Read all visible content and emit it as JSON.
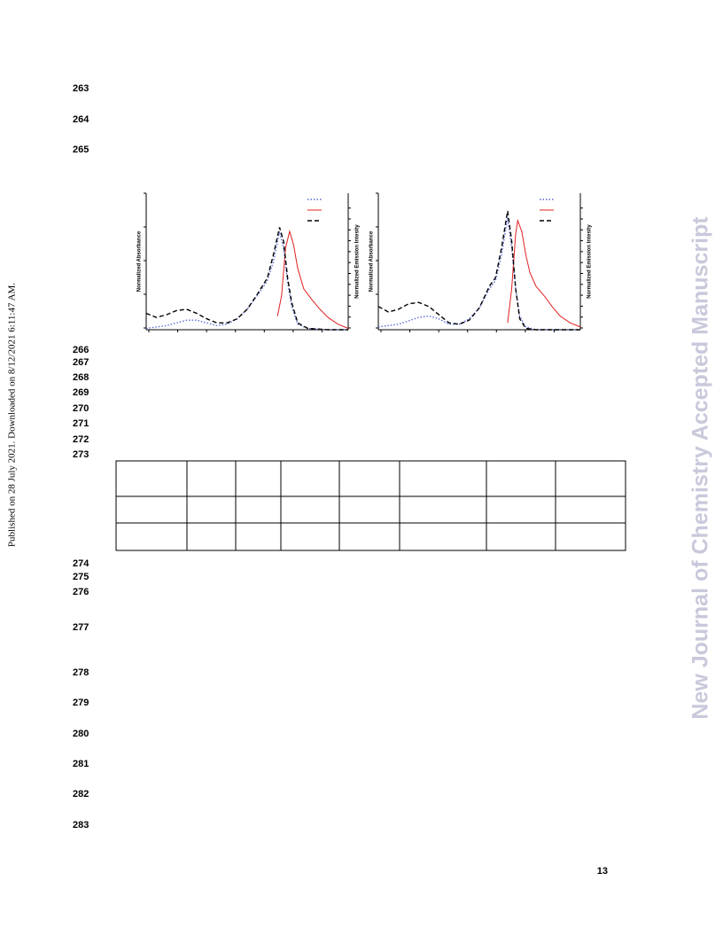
{
  "sidebar": {
    "left": "Published on 28 July 2021. Downloaded on 8/12/2021 6:11:47 AM.",
    "right": "New Journal of Chemistry Accepted Manuscript"
  },
  "line_numbers": [
    "263",
    "264",
    "265",
    "266",
    "267",
    "268",
    "269",
    "270",
    "271",
    "272",
    "273",
    "274",
    "275",
    "276",
    "277",
    "278",
    "279",
    "280",
    "281",
    "282",
    "283"
  ],
  "chart_data": [
    {
      "type": "line",
      "y_label": "Normalized Absorbance",
      "y2_label": "Normalized Emission Intesity",
      "xlim": [
        0,
        100
      ],
      "ylim": [
        0,
        1
      ],
      "series": [
        {
          "color": "#5b6bd6",
          "style": "dotted",
          "x": [
            0,
            10,
            20,
            25,
            30,
            35,
            40,
            45,
            50,
            55,
            60,
            63,
            66,
            68,
            70,
            72,
            75,
            80,
            90,
            100
          ],
          "values": [
            0.01,
            0.03,
            0.07,
            0.07,
            0.05,
            0.03,
            0.04,
            0.08,
            0.15,
            0.25,
            0.36,
            0.5,
            0.72,
            0.6,
            0.35,
            0.17,
            0.04,
            0.01,
            0,
            0
          ]
        },
        {
          "color": "#e02020",
          "style": "solid",
          "x": [
            65,
            67,
            69,
            71,
            73,
            75,
            78,
            82,
            86,
            90,
            95,
            100
          ],
          "values": [
            0.1,
            0.25,
            0.6,
            0.72,
            0.62,
            0.45,
            0.3,
            0.22,
            0.15,
            0.09,
            0.04,
            0.01
          ]
        },
        {
          "color": "#000000",
          "style": "dashed",
          "x": [
            0,
            5,
            10,
            15,
            20,
            25,
            30,
            35,
            40,
            45,
            50,
            55,
            60,
            63,
            66,
            68,
            70,
            72,
            75,
            80,
            90,
            100
          ],
          "values": [
            0.12,
            0.09,
            0.11,
            0.14,
            0.15,
            0.12,
            0.08,
            0.05,
            0.05,
            0.08,
            0.15,
            0.26,
            0.38,
            0.55,
            0.75,
            0.65,
            0.38,
            0.2,
            0.05,
            0.01,
            0,
            0
          ]
        }
      ]
    },
    {
      "type": "line",
      "y_label": "Normalized Absorbance",
      "y2_label": "Normalized Emission Intesity",
      "xlim": [
        0,
        100
      ],
      "ylim": [
        0,
        1
      ],
      "series": [
        {
          "color": "#5b6bd6",
          "style": "dotted",
          "x": [
            0,
            10,
            20,
            25,
            30,
            35,
            40,
            45,
            50,
            55,
            58,
            61,
            64,
            66,
            68,
            70,
            73,
            78,
            90,
            100
          ],
          "values": [
            0.02,
            0.04,
            0.09,
            0.1,
            0.08,
            0.04,
            0.04,
            0.08,
            0.16,
            0.3,
            0.36,
            0.55,
            0.82,
            0.6,
            0.3,
            0.1,
            0.02,
            0,
            0,
            0
          ]
        },
        {
          "color": "#e02020",
          "style": "solid",
          "x": [
            64,
            66,
            68,
            69,
            71,
            73,
            75,
            78,
            82,
            86,
            90,
            95,
            100
          ],
          "values": [
            0.05,
            0.3,
            0.7,
            0.8,
            0.72,
            0.55,
            0.42,
            0.32,
            0.25,
            0.17,
            0.1,
            0.05,
            0.02
          ]
        },
        {
          "color": "#000000",
          "style": "dashed",
          "x": [
            0,
            5,
            10,
            15,
            20,
            25,
            30,
            35,
            40,
            45,
            50,
            55,
            58,
            61,
            64,
            66,
            68,
            70,
            73,
            78,
            90,
            100
          ],
          "values": [
            0.17,
            0.13,
            0.15,
            0.19,
            0.2,
            0.17,
            0.11,
            0.05,
            0.04,
            0.07,
            0.16,
            0.32,
            0.38,
            0.6,
            0.87,
            0.65,
            0.3,
            0.08,
            0.01,
            0,
            0,
            0
          ]
        }
      ]
    }
  ],
  "page_number": "13"
}
